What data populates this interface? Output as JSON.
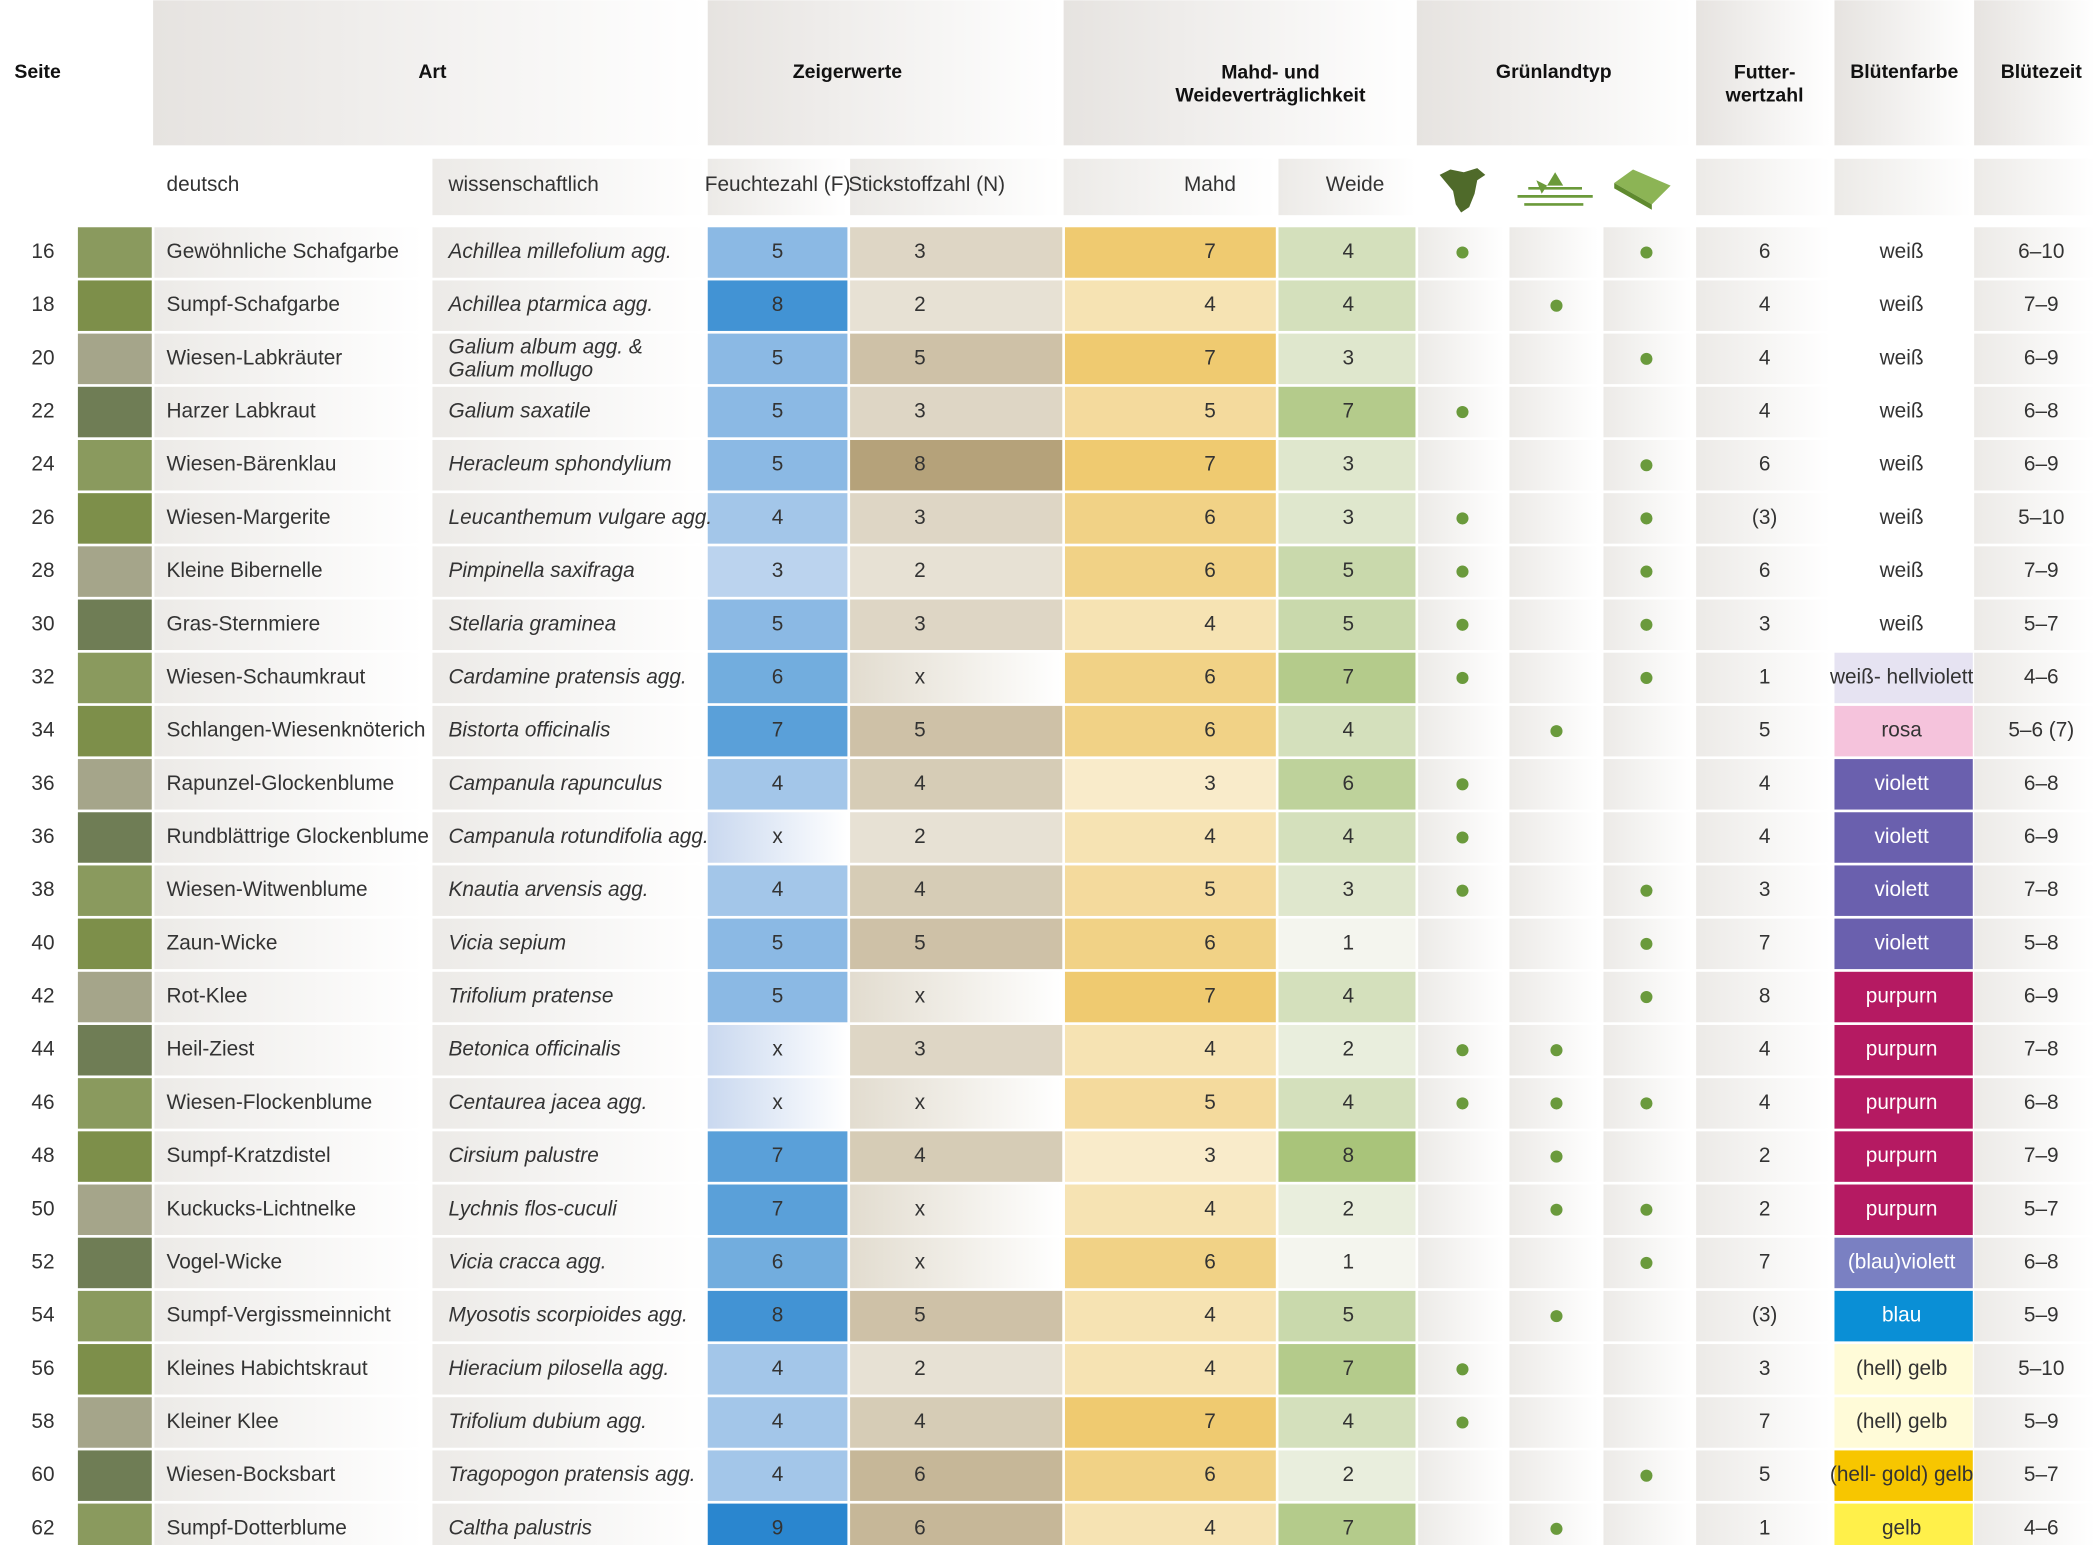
{
  "header": {
    "seite": "Seite",
    "art": "Art",
    "zeigerwerte": "Zeigerwerte",
    "vertraeglichkeit": "Mahd- und\nWeideverträglichkeit",
    "gruenlandtyp": "Grünlandtyp",
    "futterwertzahl": "Futter-\nwertzahl",
    "bluetenfarbe": "Blütenfarbe",
    "bluetezeit": "Blütezeit",
    "deutsch": "deutsch",
    "wissenschaftlich": "wissenschaftlich",
    "feuchtezahl": "Feuchtezahl (F)",
    "stickstoffzahl": "Stickstoffzahl (N)",
    "mahd": "Mahd",
    "weide": "Weide"
  },
  "rows": [
    {
      "seite": 16,
      "deutsch": "Gewöhnliche Schafgarbe",
      "wiss": "Achillea millefolium agg.",
      "f": 5,
      "n": 3,
      "mahd": 7,
      "weide": 4,
      "typ": [
        true,
        false,
        true
      ],
      "futter": 6,
      "farbe": "weiß",
      "farbe_color": "#ffffff",
      "zeit": "6–10"
    },
    {
      "seite": 18,
      "deutsch": "Sumpf-Schafgarbe",
      "wiss": "Achillea ptarmica agg.",
      "f": 8,
      "n": 2,
      "mahd": 4,
      "weide": 4,
      "typ": [
        false,
        true,
        false
      ],
      "futter": 4,
      "farbe": "weiß",
      "farbe_color": "#ffffff",
      "zeit": "7–9"
    },
    {
      "seite": 20,
      "deutsch": "Wiesen-Labkräuter",
      "wiss": "Galium album agg. &\nGalium mollugo",
      "f": 5,
      "n": 5,
      "mahd": 7,
      "weide": 3,
      "typ": [
        false,
        false,
        true
      ],
      "futter": 4,
      "farbe": "weiß",
      "farbe_color": "#ffffff",
      "zeit": "6–9"
    },
    {
      "seite": 22,
      "deutsch": "Harzer Labkraut",
      "wiss": "Galium saxatile",
      "f": 5,
      "n": 3,
      "mahd": 5,
      "weide": 7,
      "typ": [
        true,
        false,
        false
      ],
      "futter": 4,
      "farbe": "weiß",
      "farbe_color": "#ffffff",
      "zeit": "6–8"
    },
    {
      "seite": 24,
      "deutsch": "Wiesen-Bärenklau",
      "wiss": "Heracleum sphondylium",
      "f": 5,
      "n": 8,
      "mahd": 7,
      "weide": 3,
      "typ": [
        false,
        false,
        true
      ],
      "futter": 6,
      "farbe": "weiß",
      "farbe_color": "#ffffff",
      "zeit": "6–9"
    },
    {
      "seite": 26,
      "deutsch": "Wiesen-Margerite",
      "wiss": "Leucanthemum vulgare agg.",
      "f": 4,
      "n": 3,
      "mahd": 6,
      "weide": 3,
      "typ": [
        true,
        false,
        true
      ],
      "futter": "(3)",
      "farbe": "weiß",
      "farbe_color": "#ffffff",
      "zeit": "5–10"
    },
    {
      "seite": 28,
      "deutsch": "Kleine Bibernelle",
      "wiss": "Pimpinella saxifraga",
      "f": 3,
      "n": 2,
      "mahd": 6,
      "weide": 5,
      "typ": [
        true,
        false,
        true
      ],
      "futter": 6,
      "farbe": "weiß",
      "farbe_color": "#ffffff",
      "zeit": "7–9"
    },
    {
      "seite": 30,
      "deutsch": "Gras-Sternmiere",
      "wiss": "Stellaria graminea",
      "f": 5,
      "n": 3,
      "mahd": 4,
      "weide": 5,
      "typ": [
        true,
        false,
        true
      ],
      "futter": 3,
      "farbe": "weiß",
      "farbe_color": "#ffffff",
      "zeit": "5–7"
    },
    {
      "seite": 32,
      "deutsch": "Wiesen-Schaumkraut",
      "wiss": "Cardamine pratensis agg.",
      "f": 6,
      "n": "x",
      "mahd": 6,
      "weide": 7,
      "typ": [
        true,
        false,
        true
      ],
      "futter": 1,
      "farbe": "weiß- hellviolett",
      "farbe_color": "#e6e3f2",
      "zeit": "4–6"
    },
    {
      "seite": 34,
      "deutsch": "Schlangen-Wiesenknöterich",
      "wiss": "Bistorta officinalis",
      "f": 7,
      "n": 5,
      "mahd": 6,
      "weide": 4,
      "typ": [
        false,
        true,
        false
      ],
      "futter": 5,
      "farbe": "rosa",
      "farbe_color": "#f5c3dc",
      "zeit": "5–6 (7)"
    },
    {
      "seite": 36,
      "deutsch": "Rapunzel-Glockenblume",
      "wiss": "Campanula rapunculus",
      "f": 4,
      "n": 4,
      "mahd": 3,
      "weide": 6,
      "typ": [
        true,
        false,
        false
      ],
      "futter": 4,
      "farbe": "violett",
      "farbe_color": "#6a60ae",
      "zeit": "6–8"
    },
    {
      "seite": 36,
      "deutsch": "Rundblättrige Glockenblume",
      "wiss": "Campanula rotundifolia agg.",
      "f": "x",
      "n": 2,
      "mahd": 4,
      "weide": 4,
      "typ": [
        true,
        false,
        false
      ],
      "futter": 4,
      "farbe": "violett",
      "farbe_color": "#6a60ae",
      "zeit": "6–9"
    },
    {
      "seite": 38,
      "deutsch": "Wiesen-Witwenblume",
      "wiss": "Knautia arvensis agg.",
      "f": 4,
      "n": 4,
      "mahd": 5,
      "weide": 3,
      "typ": [
        true,
        false,
        true
      ],
      "futter": 3,
      "farbe": "violett",
      "farbe_color": "#6a60ae",
      "zeit": "7–8"
    },
    {
      "seite": 40,
      "deutsch": "Zaun-Wicke",
      "wiss": "Vicia sepium",
      "f": 5,
      "n": 5,
      "mahd": 6,
      "weide": 1,
      "typ": [
        false,
        false,
        true
      ],
      "futter": 7,
      "farbe": "violett",
      "farbe_color": "#6a60ae",
      "zeit": "5–8"
    },
    {
      "seite": 42,
      "deutsch": "Rot-Klee",
      "wiss": "Trifolium pratense",
      "f": 5,
      "n": "x",
      "mahd": 7,
      "weide": 4,
      "typ": [
        false,
        false,
        true
      ],
      "futter": 8,
      "farbe": "purpurn",
      "farbe_color": "#b51a62",
      "zeit": "6–9"
    },
    {
      "seite": 44,
      "deutsch": "Heil-Ziest",
      "wiss": "Betonica officinalis",
      "f": "x",
      "n": 3,
      "mahd": 4,
      "weide": 2,
      "typ": [
        true,
        true,
        false
      ],
      "futter": 4,
      "farbe": "purpurn",
      "farbe_color": "#b51a62",
      "zeit": "7–8"
    },
    {
      "seite": 46,
      "deutsch": "Wiesen-Flockenblume",
      "wiss": "Centaurea jacea agg.",
      "f": "x",
      "n": "x",
      "mahd": 5,
      "weide": 4,
      "typ": [
        true,
        true,
        true
      ],
      "futter": 4,
      "farbe": "purpurn",
      "farbe_color": "#b51a62",
      "zeit": "6–8"
    },
    {
      "seite": 48,
      "deutsch": "Sumpf-Kratzdistel",
      "wiss": "Cirsium palustre",
      "f": 7,
      "n": 4,
      "mahd": 3,
      "weide": 8,
      "typ": [
        false,
        true,
        false
      ],
      "futter": 2,
      "farbe": "purpurn",
      "farbe_color": "#b51a62",
      "zeit": "7–9"
    },
    {
      "seite": 50,
      "deutsch": "Kuckucks-Lichtnelke",
      "wiss": "Lychnis flos-cuculi",
      "f": 7,
      "n": "x",
      "mahd": 4,
      "weide": 2,
      "typ": [
        false,
        true,
        true
      ],
      "futter": 2,
      "farbe": "purpurn",
      "farbe_color": "#b51a62",
      "zeit": "5–7"
    },
    {
      "seite": 52,
      "deutsch": "Vogel-Wicke",
      "wiss": "Vicia cracca agg.",
      "f": 6,
      "n": "x",
      "mahd": 6,
      "weide": 1,
      "typ": [
        false,
        false,
        true
      ],
      "futter": 7,
      "farbe": "(blau)violett",
      "farbe_color": "#7a80c2",
      "zeit": "6–8"
    },
    {
      "seite": 54,
      "deutsch": "Sumpf-Vergissmeinnicht",
      "wiss": "Myosotis scorpioides agg.",
      "f": 8,
      "n": 5,
      "mahd": 4,
      "weide": 5,
      "typ": [
        false,
        true,
        false
      ],
      "futter": "(3)",
      "farbe": "blau",
      "farbe_color": "#0a8fd6",
      "zeit": "5–9"
    },
    {
      "seite": 56,
      "deutsch": "Kleines Habichtskraut",
      "wiss": "Hieracium pilosella agg.",
      "f": 4,
      "n": 2,
      "mahd": 4,
      "weide": 7,
      "typ": [
        true,
        false,
        false
      ],
      "futter": 3,
      "farbe": "(hell) gelb",
      "farbe_color": "#fffbd8",
      "zeit": "5–10"
    },
    {
      "seite": 58,
      "deutsch": "Kleiner Klee",
      "wiss": "Trifolium dubium agg.",
      "f": 4,
      "n": 4,
      "mahd": 7,
      "weide": 4,
      "typ": [
        true,
        false,
        false
      ],
      "futter": 7,
      "farbe": "(hell) gelb",
      "farbe_color": "#fffbd8",
      "zeit": "5–9"
    },
    {
      "seite": 60,
      "deutsch": "Wiesen-Bocksbart",
      "wiss": "Tragopogon pratensis agg.",
      "f": 4,
      "n": 6,
      "mahd": 6,
      "weide": 2,
      "typ": [
        false,
        false,
        true
      ],
      "futter": 5,
      "farbe": "(hell- gold) gelb",
      "farbe_color": "#f7c600",
      "zeit": "5–7"
    },
    {
      "seite": 62,
      "deutsch": "Sumpf-Dotterblume",
      "wiss": "Caltha palustris",
      "f": 9,
      "n": 6,
      "mahd": 4,
      "weide": 7,
      "typ": [
        false,
        true,
        false
      ],
      "futter": 1,
      "farbe": "gelb",
      "farbe_color": "#fff04a",
      "zeit": "4–6"
    }
  ]
}
